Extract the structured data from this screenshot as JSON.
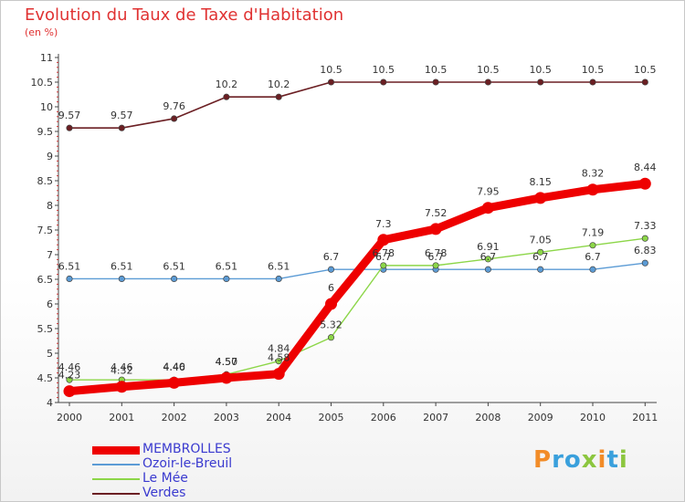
{
  "title": "Evolution du Taux de Taxe d'Habitation",
  "unit": "(en %)",
  "logo": {
    "letters": [
      {
        "ch": "P",
        "color": "#f28c28"
      },
      {
        "ch": "r",
        "color": "#3aa0dc"
      },
      {
        "ch": "o",
        "color": "#3aa0dc"
      },
      {
        "ch": "x",
        "color": "#8cc63f"
      },
      {
        "ch": "i",
        "color": "#f28c28"
      },
      {
        "ch": "t",
        "color": "#3aa0dc"
      },
      {
        "ch": "i",
        "color": "#8cc63f"
      }
    ]
  },
  "chart_data": {
    "type": "line",
    "title": "Evolution du Taux de Taxe d'Habitation",
    "ylabel": "(en %)",
    "xlabel": "",
    "categories": [
      "2000",
      "2001",
      "2002",
      "2003",
      "2004",
      "2005",
      "2006",
      "2007",
      "2008",
      "2009",
      "2010",
      "2011"
    ],
    "ylim": [
      4,
      11
    ],
    "yticks": [
      "4",
      "4.5",
      "5",
      "5.5",
      "6",
      "6.5",
      "7",
      "7.5",
      "8",
      "8.5",
      "9",
      "9.5",
      "10",
      "10.5",
      "11"
    ],
    "grid": false,
    "legend_position": "bottom-left",
    "series": [
      {
        "name": "MEMBROLLES",
        "color": "#ee0000",
        "values": [
          4.23,
          4.32,
          4.4,
          4.5,
          4.58,
          6,
          7.3,
          7.52,
          7.95,
          8.15,
          8.32,
          8.44
        ],
        "labels": [
          "4.23",
          "4.32",
          "4.40",
          "4.50",
          "4.58",
          "6",
          "7.3",
          "7.52",
          "7.95",
          "8.15",
          "8.32",
          "8.44"
        ]
      },
      {
        "name": "Ozoir-le-Breuil",
        "color": "#5b9bd5",
        "values": [
          6.51,
          6.51,
          6.51,
          6.51,
          6.51,
          6.7,
          6.7,
          6.7,
          6.7,
          6.7,
          6.7,
          6.83
        ],
        "labels": [
          "6.51",
          "6.51",
          "6.51",
          "6.51",
          "6.51",
          "6.7",
          "6.7",
          "6.7",
          "6.7",
          "6.7",
          "6.7",
          "6.83"
        ]
      },
      {
        "name": "Le Mée",
        "color": "#8cd648",
        "values": [
          4.46,
          4.46,
          4.46,
          4.57,
          4.84,
          5.32,
          6.78,
          6.78,
          6.91,
          7.05,
          7.19,
          7.33
        ],
        "labels": [
          "4.46",
          "4.46",
          "4.46",
          "4.57",
          "4.84",
          "5.32",
          "6.78",
          "6.78",
          "6.91",
          "7.05",
          "7.19",
          "7.33"
        ]
      },
      {
        "name": "Verdes",
        "color": "#6b1f23",
        "values": [
          9.57,
          9.57,
          9.76,
          10.2,
          10.2,
          10.5,
          10.5,
          10.5,
          10.5,
          10.5,
          10.5,
          10.5
        ],
        "labels": [
          "9.57",
          "9.57",
          "9.76",
          "10.2",
          "10.2",
          "10.5",
          "10.5",
          "10.5",
          "10.5",
          "10.5",
          "10.5",
          "10.5"
        ]
      }
    ]
  }
}
